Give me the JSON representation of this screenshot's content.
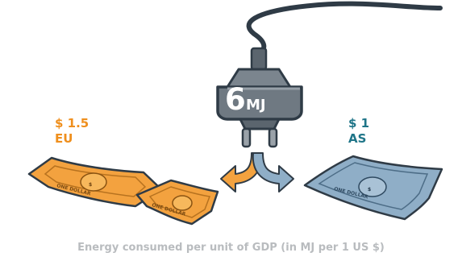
{
  "energy": {
    "value": "6",
    "unit": "MJ"
  },
  "eu": {
    "price": "$ 1.5",
    "region": "EU"
  },
  "as": {
    "price": "$ 1",
    "region": "AS"
  },
  "caption": "Energy consumed per unit of GDP (in MJ per 1 US $)",
  "banknote_text": {
    "symbol": "$",
    "denomination": "ONE DOLLAR"
  },
  "colors": {
    "eu_text": "#ef8f1d",
    "as_text": "#1f7588",
    "eu_note": "#f3a23f",
    "as_note": "#8faec7",
    "plug": "#6f7982",
    "caption": "#b9bcbf"
  },
  "icons": {
    "plug": "power-plug-icon",
    "arrow_left": "curved-arrow-left-icon",
    "arrow_right": "curved-arrow-right-icon",
    "eu_notes": "banknote-icon",
    "as_note": "banknote-icon"
  }
}
